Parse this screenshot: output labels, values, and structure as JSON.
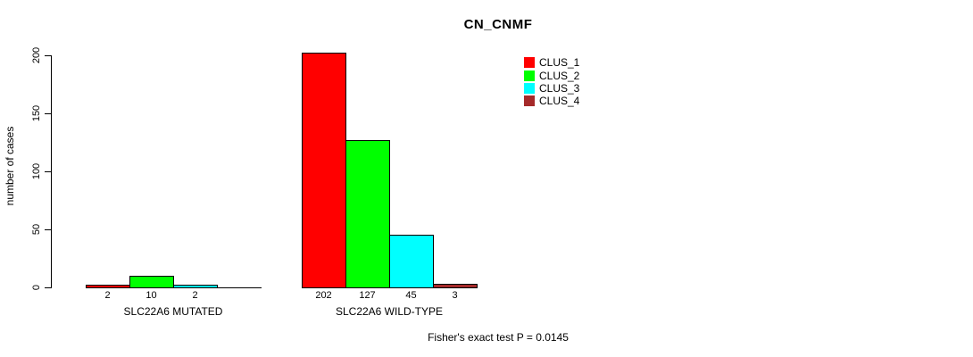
{
  "chart_data": {
    "type": "bar",
    "title": "CN_CNMF",
    "ylabel": "number of cases",
    "xlabel": "",
    "ylim": [
      0,
      200
    ],
    "yticks": [
      0,
      50,
      100,
      150,
      200
    ],
    "grid": false,
    "legend_position": "top-right",
    "groups": [
      "SLC22A6 MUTATED",
      "SLC22A6 WILD-TYPE"
    ],
    "series": [
      {
        "name": "CLUS_1",
        "color": "#ff0000",
        "values": [
          2,
          202
        ]
      },
      {
        "name": "CLUS_2",
        "color": "#00ff00",
        "values": [
          10,
          127
        ]
      },
      {
        "name": "CLUS_3",
        "color": "#00ffff",
        "values": [
          2,
          45
        ]
      },
      {
        "name": "CLUS_4",
        "color": "#a52a2a",
        "values": [
          0,
          3
        ]
      }
    ],
    "bar_value_labels": {
      "SLC22A6 MUTATED": [
        2,
        10,
        2,
        null
      ],
      "SLC22A6 WILD-TYPE": [
        202,
        127,
        45,
        3
      ]
    },
    "annotation": "Fisher's exact test P = 0.0145"
  }
}
